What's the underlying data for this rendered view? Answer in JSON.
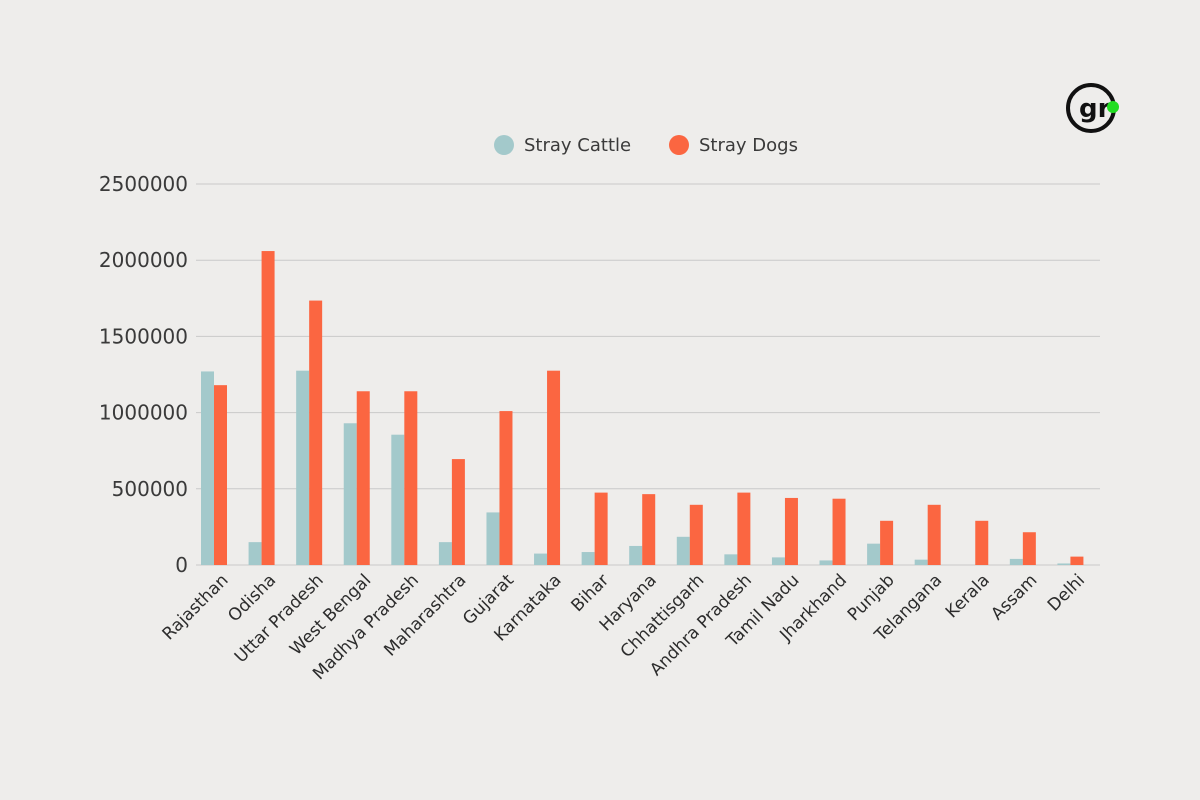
{
  "logo": {
    "text": "gr",
    "ring_color": "#111111",
    "dot_color": "#22dd22"
  },
  "colors": {
    "cattle": "#a3c9cb",
    "dogs": "#fb6641",
    "grid": "#c9c9c9",
    "background": "#eeedeb"
  },
  "chart_data": {
    "type": "bar",
    "categories": [
      "Rajasthan",
      "Odisha",
      "Uttar Pradesh",
      "West Bengal",
      "Madhya Pradesh",
      "Maharashtra",
      "Gujarat",
      "Karnataka",
      "Bihar",
      "Haryana",
      "Chhattisgarh",
      "Andhra Pradesh",
      "Tamil Nadu",
      "Jharkhand",
      "Punjab",
      "Telangana",
      "Kerala",
      "Assam",
      "Delhi"
    ],
    "series": [
      {
        "name": "Stray Cattle",
        "color": "#a3c9cb",
        "values": [
          1270000,
          150000,
          1275000,
          930000,
          855000,
          150000,
          345000,
          75000,
          85000,
          125000,
          185000,
          70000,
          50000,
          30000,
          140000,
          35000,
          0,
          40000,
          10000
        ]
      },
      {
        "name": "Stray Dogs",
        "color": "#fb6641",
        "values": [
          1180000,
          2060000,
          1735000,
          1140000,
          1140000,
          695000,
          1010000,
          1275000,
          475000,
          465000,
          395000,
          475000,
          440000,
          435000,
          290000,
          395000,
          290000,
          215000,
          55000
        ]
      }
    ],
    "yticks": [
      "0",
      "500000",
      "1000000",
      "1500000",
      "2000000",
      "2500000"
    ],
    "ylim": [
      0,
      2500000
    ],
    "grid": true,
    "legend_position": "top-center",
    "title": "",
    "xlabel": "",
    "ylabel": ""
  }
}
